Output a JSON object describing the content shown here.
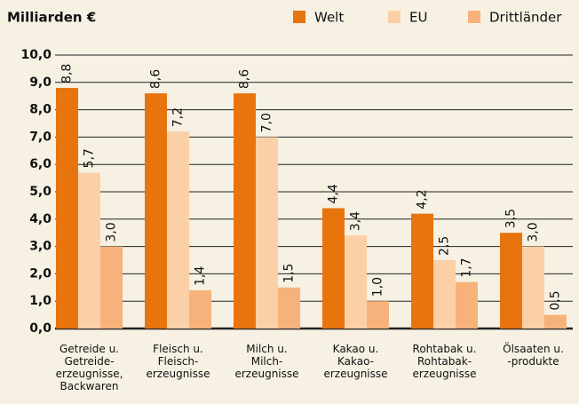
{
  "chart_data": {
    "type": "bar",
    "title": "Milliarden €",
    "categories": [
      "Getreide u.\nGetreide-\nerzeugnisse,\nBackwaren",
      "Fleisch u.\nFleisch-\nerzeugnisse",
      "Milch u.\nMilch-\nerzeugnisse",
      "Kakao u.\nKakao-\nerzeugnisse",
      "Rohtabak u.\nRohtabak-\nerzeugnisse",
      "Ölsaaten u.\n-produkte"
    ],
    "series": [
      {
        "name": "Welt",
        "color": "#e8740e",
        "values": [
          8.8,
          8.6,
          8.6,
          4.4,
          4.2,
          3.5
        ],
        "value_labels": [
          "8,8",
          "8,6",
          "8,6",
          "4,4",
          "4,2",
          "3,5"
        ]
      },
      {
        "name": "EU",
        "color": "#fcd0a6",
        "values": [
          5.7,
          7.2,
          7.0,
          3.4,
          2.5,
          3.0
        ],
        "value_labels": [
          "5,7",
          "7,2",
          "7,0",
          "3,4",
          "2,5",
          "3,0"
        ]
      },
      {
        "name": "Drittländer",
        "color": "#f6b27a",
        "values": [
          3.0,
          1.4,
          1.5,
          1.0,
          1.7,
          0.5
        ],
        "value_labels": [
          "3,0",
          "1,4",
          "1,5",
          "1,0",
          "1,7",
          "0,5"
        ]
      }
    ],
    "ylim": [
      0,
      10
    ],
    "yticks": [
      {
        "value": 0,
        "label": "0,0"
      },
      {
        "value": 1,
        "label": "1,0"
      },
      {
        "value": 2,
        "label": "2,0"
      },
      {
        "value": 3,
        "label": "3,0"
      },
      {
        "value": 4,
        "label": "4,0"
      },
      {
        "value": 5,
        "label": "5,0"
      },
      {
        "value": 6,
        "label": "6,0"
      },
      {
        "value": 7,
        "label": "7,0"
      },
      {
        "value": 8,
        "label": "8,0"
      },
      {
        "value": 9,
        "label": "9,0"
      },
      {
        "value": 10,
        "label": "10,0"
      }
    ],
    "grid": true
  }
}
